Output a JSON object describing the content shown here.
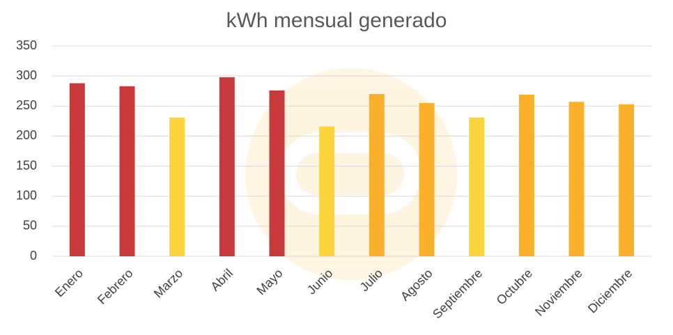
{
  "chart_data": {
    "type": "bar",
    "title": "kWh mensual generado",
    "categories": [
      "Enero",
      "Febrero",
      "Marzo",
      "Abril",
      "Mayo",
      "Junio",
      "Julio",
      "Agosto",
      "Septiembre",
      "Octubre",
      "Noviembre",
      "Diciembre"
    ],
    "values": [
      288,
      283,
      231,
      298,
      276,
      216,
      270,
      255,
      231,
      269,
      257,
      253
    ],
    "colors": [
      "#c8393c",
      "#c8393c",
      "#fcd43c",
      "#c8393c",
      "#c8393c",
      "#fcd43c",
      "#fbb02b",
      "#fbb02b",
      "#fcd43c",
      "#fbb02b",
      "#fbb02b",
      "#fbb02b"
    ],
    "ylim": [
      0,
      350
    ],
    "yticks": [
      0,
      50,
      100,
      150,
      200,
      250,
      300,
      350
    ],
    "grid": true
  }
}
